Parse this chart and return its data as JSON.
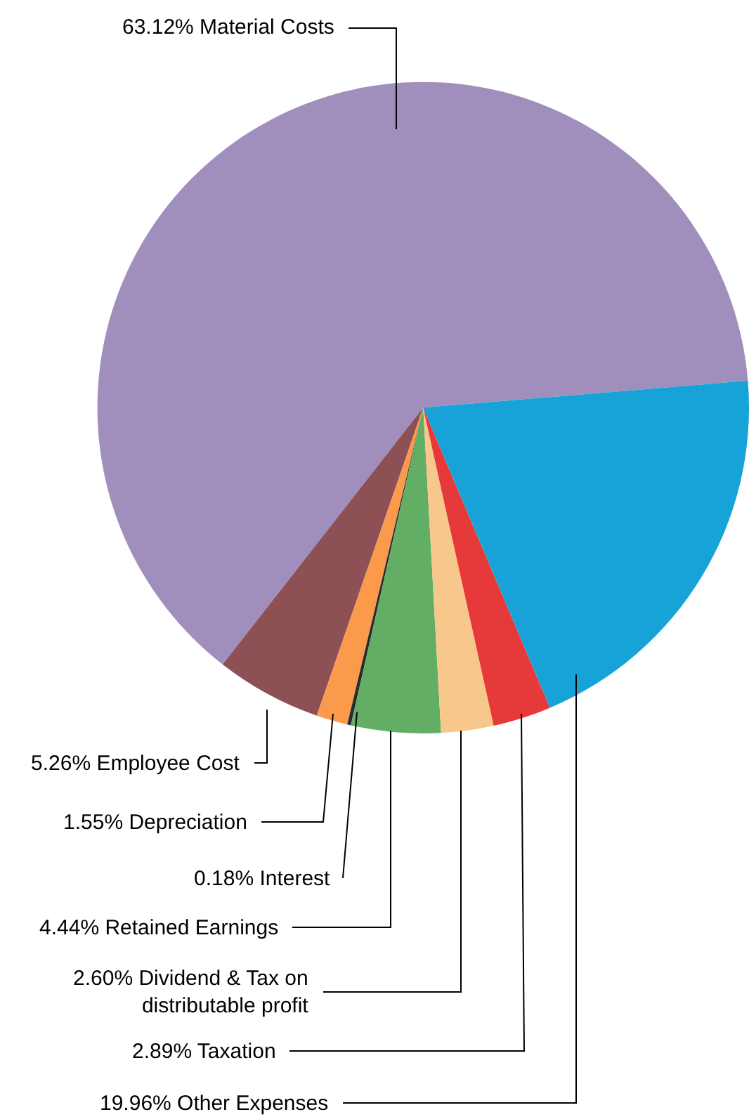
{
  "chart_data": {
    "type": "pie",
    "categories": [
      "Material Costs",
      "Employee Cost",
      "Depreciation",
      "Interest",
      "Retained Earnings",
      "Dividend & Tax on\ndistributable profit",
      "Taxation",
      "Other Expenses"
    ],
    "values": [
      63.12,
      5.26,
      1.55,
      0.18,
      4.44,
      2.6,
      2.89,
      19.96
    ],
    "value_labels": [
      "63.12%",
      "5.26%",
      "1.55%",
      "0.18%",
      "4.44%",
      "2.60%",
      "2.89%",
      "19.96%"
    ],
    "colors": [
      "#a08fbc",
      "#8c5055",
      "#fb9a4b",
      "#2b2b2b",
      "#62ae64",
      "#f8c78c",
      "#e6393a",
      "#18a3d8"
    ],
    "legend": false
  }
}
